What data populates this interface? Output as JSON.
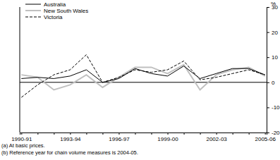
{
  "chart_data": {
    "type": "line",
    "y_label": "%",
    "footnotes": [
      "(a) At basic prices.",
      "(b) Reference year for chain volume measures is 2004-05."
    ],
    "categories": [
      "1990-91",
      null,
      null,
      "1993-94",
      null,
      null,
      "1996-97",
      null,
      null,
      "1999-00",
      null,
      null,
      "2002-03",
      null,
      null,
      "2005-06"
    ],
    "series": [
      {
        "name": "Australia",
        "color": "#000000",
        "line_style": "solid",
        "values": [
          1.5,
          2,
          1.5,
          2.5,
          5,
          0,
          1.5,
          5.5,
          3.5,
          2.5,
          6.5,
          1.5,
          3.5,
          5.5,
          5.5,
          3
        ]
      },
      {
        "name": "New South Wales",
        "color": "#c0c0c0",
        "line_style": "solid",
        "values": [
          3,
          2,
          -3,
          -1,
          3,
          -2,
          2,
          6,
          6,
          3.5,
          7,
          -3,
          3,
          5,
          6,
          2.5
        ]
      },
      {
        "name": "Victoria",
        "color": "#000000",
        "line_style": "dashed",
        "values": [
          -6,
          -1,
          3,
          5,
          11,
          0,
          2,
          5,
          4,
          5,
          8.5,
          1,
          2,
          3.5,
          5,
          3
        ]
      }
    ],
    "ylim": [
      -20,
      30
    ],
    "yticks": [
      -20,
      -10,
      0,
      10,
      20,
      30
    ],
    "legend": "top-left",
    "grid": false
  }
}
